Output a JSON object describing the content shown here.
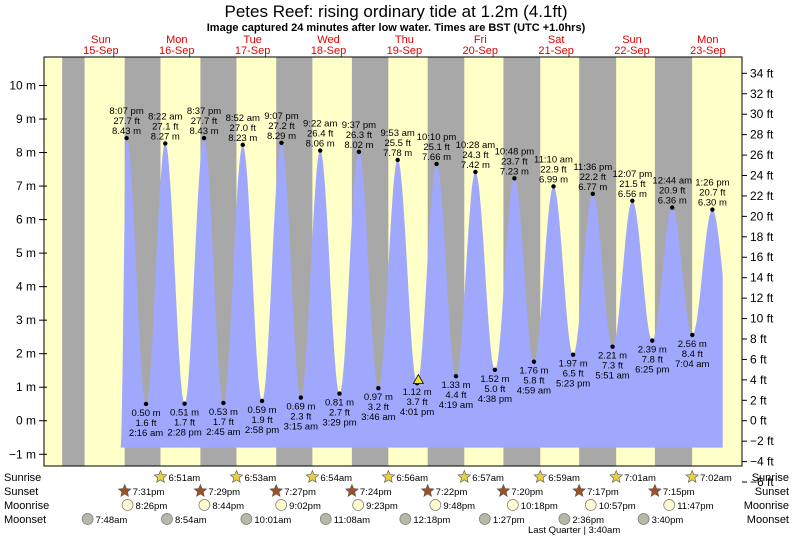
{
  "header": {
    "title": "Petes Reef: rising  ordinary tide at 1.2m (4.1ft)",
    "subtitle": "Image captured 24 minutes after low water. Times are BST (UTC +1.0hrs)"
  },
  "colors": {
    "day_bg": "#ffffc8",
    "night_bg": "#a8a8a8",
    "tide_fill": "#9fa8fc",
    "day_label": "#e00000",
    "sun_star": "#e8d040",
    "sunset_star": "#a05020",
    "moonrise": "#fffbd0",
    "moonset": "#b8b8a8"
  },
  "chart_data": {
    "type": "area",
    "title": "Petes Reef: rising  ordinary tide at 1.2m (4.1ft)",
    "ylabel_left": "m",
    "ylabel_right": "ft",
    "ylim_m": [
      -1.35,
      10.85
    ],
    "yticks_m": [
      "10 m",
      "9 m",
      "8 m",
      "7 m",
      "6 m",
      "5 m",
      "4 m",
      "3 m",
      "2 m",
      "1 m",
      "0 m",
      "−1 m"
    ],
    "yticks_m_values": [
      10,
      9,
      8,
      7,
      6,
      5,
      4,
      3,
      2,
      1,
      0,
      -1
    ],
    "yticks_ft": [
      "34 ft",
      "32 ft",
      "30 ft",
      "28 ft",
      "26 ft",
      "24 ft",
      "22 ft",
      "20 ft",
      "18 ft",
      "16 ft",
      "14 ft",
      "12 ft",
      "10 ft",
      "8 ft",
      "6 ft",
      "4 ft",
      "2 ft",
      "0 ft",
      "−2 ft",
      "−4 ft",
      "−6 ft"
    ],
    "yticks_ft_values": [
      34,
      32,
      30,
      28,
      26,
      24,
      22,
      20,
      18,
      16,
      14,
      12,
      10,
      8,
      6,
      4,
      2,
      0,
      -2,
      -4,
      -6
    ],
    "x_start_day_offset": -0.25,
    "x_end_day_offset": 8.95,
    "days": [
      {
        "dow": "Sun",
        "date": "15-Sep"
      },
      {
        "dow": "Mon",
        "date": "16-Sep"
      },
      {
        "dow": "Tue",
        "date": "17-Sep"
      },
      {
        "dow": "Wed",
        "date": "18-Sep"
      },
      {
        "dow": "Thu",
        "date": "19-Sep"
      },
      {
        "dow": "Fri",
        "date": "20-Sep"
      },
      {
        "dow": "Sat",
        "date": "21-Sep"
      },
      {
        "dow": "Sun",
        "date": "22-Sep"
      },
      {
        "dow": "Mon",
        "date": "23-Sep"
      }
    ],
    "high_tides": [
      {
        "day": 0,
        "time": "8:07 pm",
        "ft": "27.7 ft",
        "m": "8.43 m",
        "h": 20.12,
        "value": 8.43
      },
      {
        "day": 1,
        "time": "8:22 am",
        "ft": "27.1 ft",
        "m": "8.27 m",
        "h": 8.37,
        "value": 8.27
      },
      {
        "day": 1,
        "time": "8:37 pm",
        "ft": "27.7 ft",
        "m": "8.43 m",
        "h": 20.62,
        "value": 8.43
      },
      {
        "day": 2,
        "time": "8:52 am",
        "ft": "27.0 ft",
        "m": "8.23 m",
        "h": 8.87,
        "value": 8.23
      },
      {
        "day": 2,
        "time": "9:07 pm",
        "ft": "27.2 ft",
        "m": "8.29 m",
        "h": 21.12,
        "value": 8.29
      },
      {
        "day": 3,
        "time": "9:22 am",
        "ft": "26.4 ft",
        "m": "8.06 m",
        "h": 9.37,
        "value": 8.06
      },
      {
        "day": 3,
        "time": "9:37 pm",
        "ft": "26.3 ft",
        "m": "8.02 m",
        "h": 21.62,
        "value": 8.02
      },
      {
        "day": 4,
        "time": "9:53 am",
        "ft": "25.5 ft",
        "m": "7.78 m",
        "h": 9.88,
        "value": 7.78
      },
      {
        "day": 4,
        "time": "10:10 pm",
        "ft": "25.1 ft",
        "m": "7.66 m",
        "h": 22.17,
        "value": 7.66
      },
      {
        "day": 5,
        "time": "10:28 am",
        "ft": "24.3 ft",
        "m": "7.42 m",
        "h": 10.47,
        "value": 7.42
      },
      {
        "day": 5,
        "time": "10:48 pm",
        "ft": "23.7 ft",
        "m": "7.23 m",
        "h": 22.8,
        "value": 7.23
      },
      {
        "day": 6,
        "time": "11:10 am",
        "ft": "22.9 ft",
        "m": "6.99 m",
        "h": 11.17,
        "value": 6.99
      },
      {
        "day": 6,
        "time": "11:36 pm",
        "ft": "22.2 ft",
        "m": "6.77 m",
        "h": 23.6,
        "value": 6.77
      },
      {
        "day": 7,
        "time": "12:07 pm",
        "ft": "21.5 ft",
        "m": "6.56 m",
        "h": 12.12,
        "value": 6.56
      },
      {
        "day": 8,
        "time": "12:44 am",
        "ft": "20.9 ft",
        "m": "6.36 m",
        "h": 0.73,
        "value": 6.36
      },
      {
        "day": 8,
        "time": "1:26 pm",
        "ft": "20.7 ft",
        "m": "6.30 m",
        "h": 13.43,
        "value": 6.3
      }
    ],
    "low_tides": [
      {
        "day": 1,
        "time": "2:16 am",
        "ft": "1.6 ft",
        "m": "0.50 m",
        "h": 2.27,
        "value": 0.5
      },
      {
        "day": 1,
        "time": "2:28 pm",
        "ft": "1.7 ft",
        "m": "0.51 m",
        "h": 14.47,
        "value": 0.51
      },
      {
        "day": 2,
        "time": "2:45 am",
        "ft": "1.7 ft",
        "m": "0.53 m",
        "h": 2.75,
        "value": 0.53
      },
      {
        "day": 2,
        "time": "2:58 pm",
        "ft": "1.9 ft",
        "m": "0.59 m",
        "h": 14.97,
        "value": 0.59
      },
      {
        "day": 3,
        "time": "3:15 am",
        "ft": "2.3 ft",
        "m": "0.69 m",
        "h": 3.25,
        "value": 0.69
      },
      {
        "day": 3,
        "time": "3:29 pm",
        "ft": "2.7 ft",
        "m": "0.81 m",
        "h": 15.48,
        "value": 0.81
      },
      {
        "day": 4,
        "time": "3:46 am",
        "ft": "3.2 ft",
        "m": "0.97 m",
        "h": 3.77,
        "value": 0.97
      },
      {
        "day": 4,
        "time": "4:01 pm",
        "ft": "3.7 ft",
        "m": "1.12 m",
        "h": 16.02,
        "value": 1.12
      },
      {
        "day": 5,
        "time": "4:19 am",
        "ft": "4.4 ft",
        "m": "1.33 m",
        "h": 4.32,
        "value": 1.33
      },
      {
        "day": 5,
        "time": "4:38 pm",
        "ft": "5.0 ft",
        "m": "1.52 m",
        "h": 16.63,
        "value": 1.52
      },
      {
        "day": 6,
        "time": "4:59 am",
        "ft": "5.8 ft",
        "m": "1.76 m",
        "h": 4.98,
        "value": 1.76
      },
      {
        "day": 6,
        "time": "5:23 pm",
        "ft": "6.5 ft",
        "m": "1.97 m",
        "h": 17.38,
        "value": 1.97
      },
      {
        "day": 7,
        "time": "5:51 am",
        "ft": "7.3 ft",
        "m": "2.21 m",
        "h": 5.85,
        "value": 2.21
      },
      {
        "day": 7,
        "time": "6:25 pm",
        "ft": "7.8 ft",
        "m": "2.39 m",
        "h": 18.42,
        "value": 2.39
      },
      {
        "day": 8,
        "time": "7:04 am",
        "ft": "8.4 ft",
        "m": "2.56 m",
        "h": 7.07,
        "value": 2.56
      }
    ],
    "current_marker": {
      "day": 4,
      "h": 16.42,
      "value": 1.2
    },
    "series_start": {
      "day": 0,
      "h": 18.2,
      "value": -0.8
    },
    "series_end": {
      "day": 8,
      "h": 16.7,
      "value": 4.6
    },
    "night_bands": [
      [
        -0.25,
        6.85
      ],
      [
        19.52,
        30.85
      ],
      [
        43.48,
        54.88
      ],
      [
        67.45,
        78.9
      ],
      [
        91.4,
        102.93
      ],
      [
        115.37,
        126.95
      ],
      [
        139.33,
        150.98
      ],
      [
        163.28,
        175.0
      ],
      [
        187.25,
        199.03
      ]
    ],
    "plot_floor_m": -0.8,
    "events": {
      "Sunrise": [
        {
          "day": 1,
          "label": "6:51am",
          "h": 6.85
        },
        {
          "day": 2,
          "label": "6:53am",
          "h": 6.88
        },
        {
          "day": 3,
          "label": "6:54am",
          "h": 6.9
        },
        {
          "day": 4,
          "label": "6:56am",
          "h": 6.93
        },
        {
          "day": 5,
          "label": "6:57am",
          "h": 6.95
        },
        {
          "day": 6,
          "label": "6:59am",
          "h": 6.98
        },
        {
          "day": 7,
          "label": "7:01am",
          "h": 7.0
        },
        {
          "day": 8,
          "label": "7:02am",
          "h": 7.03
        }
      ],
      "Sunset": [
        {
          "day": 0,
          "label": "7:31pm",
          "h": 19.52
        },
        {
          "day": 1,
          "label": "7:29pm",
          "h": 19.48
        },
        {
          "day": 2,
          "label": "7:27pm",
          "h": 19.45
        },
        {
          "day": 3,
          "label": "7:24pm",
          "h": 19.4
        },
        {
          "day": 4,
          "label": "7:22pm",
          "h": 19.37
        },
        {
          "day": 5,
          "label": "7:20pm",
          "h": 19.33
        },
        {
          "day": 6,
          "label": "7:17pm",
          "h": 19.28
        },
        {
          "day": 7,
          "label": "7:15pm",
          "h": 19.25
        }
      ],
      "Moonrise": [
        {
          "day": 0,
          "label": "8:26pm",
          "h": 20.43
        },
        {
          "day": 1,
          "label": "8:44pm",
          "h": 20.73
        },
        {
          "day": 2,
          "label": "9:02pm",
          "h": 21.03
        },
        {
          "day": 3,
          "label": "9:23pm",
          "h": 21.38
        },
        {
          "day": 4,
          "label": "9:48pm",
          "h": 21.8
        },
        {
          "day": 5,
          "label": "10:18pm",
          "h": 22.3
        },
        {
          "day": 6,
          "label": "10:57pm",
          "h": 22.95
        },
        {
          "day": 7,
          "label": "11:47pm",
          "h": 23.78
        }
      ],
      "Moonset": [
        {
          "day": 0,
          "label": "7:48am",
          "h": 7.8
        },
        {
          "day": 1,
          "label": "8:54am",
          "h": 8.9
        },
        {
          "day": 2,
          "label": "10:01am",
          "h": 10.02
        },
        {
          "day": 3,
          "label": "11:08am",
          "h": 11.13
        },
        {
          "day": 4,
          "label": "12:18pm",
          "h": 12.3
        },
        {
          "day": 5,
          "label": "1:27pm",
          "h": 13.45
        },
        {
          "day": 6,
          "label": "2:36pm",
          "h": 14.6
        },
        {
          "day": 7,
          "label": "3:40pm",
          "h": 15.67
        }
      ]
    },
    "event_rows": [
      "Sunrise",
      "Sunset",
      "Moonrise",
      "Moonset"
    ],
    "moon_phase_note": "Last Quarter | 3:40am"
  }
}
